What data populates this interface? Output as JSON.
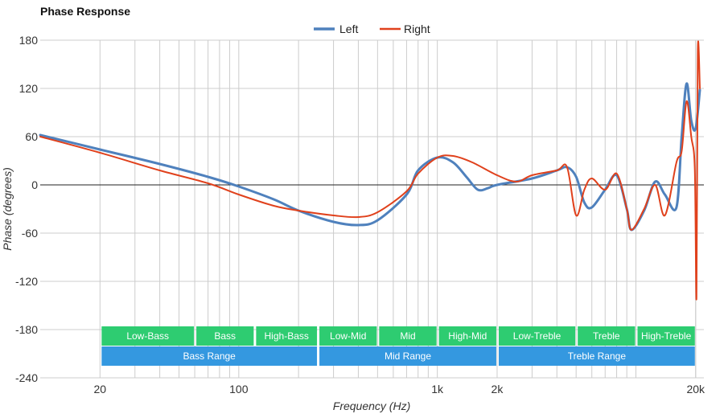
{
  "chart_data": {
    "type": "line",
    "title": "Phase Response",
    "xlabel": "Frequency (Hz)",
    "ylabel": "Phase (degrees)",
    "x_scale": "log",
    "xlim": [
      10,
      22000
    ],
    "ylim": [
      -240,
      180
    ],
    "x_ticks": [
      {
        "value": 20,
        "label": "20"
      },
      {
        "value": 100,
        "label": "100"
      },
      {
        "value": 1000,
        "label": "1k"
      },
      {
        "value": 2000,
        "label": "2k"
      },
      {
        "value": 20000,
        "label": "20k"
      }
    ],
    "y_ticks": [
      180,
      120,
      60,
      0,
      -60,
      -120,
      -180,
      -240
    ],
    "grid": true,
    "legend_position": "top-center",
    "series": [
      {
        "name": "Left",
        "color": "#4f81bd",
        "points": [
          [
            10,
            62
          ],
          [
            20,
            44
          ],
          [
            40,
            26
          ],
          [
            70,
            10
          ],
          [
            100,
            -2
          ],
          [
            150,
            -18
          ],
          [
            200,
            -32
          ],
          [
            300,
            -46
          ],
          [
            400,
            -50
          ],
          [
            500,
            -44
          ],
          [
            700,
            -12
          ],
          [
            800,
            18
          ],
          [
            1000,
            34
          ],
          [
            1200,
            28
          ],
          [
            1400,
            10
          ],
          [
            1600,
            -6
          ],
          [
            1800,
            -4
          ],
          [
            2000,
            0
          ],
          [
            3000,
            8
          ],
          [
            4000,
            18
          ],
          [
            4500,
            22
          ],
          [
            5000,
            10
          ],
          [
            5500,
            -22
          ],
          [
            6000,
            -28
          ],
          [
            7000,
            -6
          ],
          [
            8000,
            12
          ],
          [
            9000,
            -30
          ],
          [
            9500,
            -56
          ],
          [
            11000,
            -32
          ],
          [
            12500,
            4
          ],
          [
            14000,
            -12
          ],
          [
            16000,
            -28
          ],
          [
            17000,
            60
          ],
          [
            18000,
            126
          ],
          [
            19000,
            80
          ],
          [
            20000,
            70
          ],
          [
            21000,
            118
          ]
        ]
      },
      {
        "name": "Right",
        "color": "#e0411c",
        "points": [
          [
            10,
            60
          ],
          [
            20,
            40
          ],
          [
            40,
            18
          ],
          [
            70,
            2
          ],
          [
            100,
            -12
          ],
          [
            150,
            -26
          ],
          [
            200,
            -32
          ],
          [
            300,
            -38
          ],
          [
            400,
            -40
          ],
          [
            500,
            -34
          ],
          [
            700,
            -8
          ],
          [
            800,
            14
          ],
          [
            1000,
            34
          ],
          [
            1200,
            36
          ],
          [
            1500,
            28
          ],
          [
            2000,
            12
          ],
          [
            2500,
            4
          ],
          [
            3000,
            12
          ],
          [
            4000,
            18
          ],
          [
            4500,
            22
          ],
          [
            5000,
            -38
          ],
          [
            5500,
            -6
          ],
          [
            6000,
            8
          ],
          [
            7000,
            -6
          ],
          [
            8000,
            14
          ],
          [
            9000,
            -30
          ],
          [
            9500,
            -56
          ],
          [
            11000,
            -30
          ],
          [
            12500,
            0
          ],
          [
            14000,
            -38
          ],
          [
            16000,
            28
          ],
          [
            17000,
            42
          ],
          [
            18000,
            104
          ],
          [
            19000,
            60
          ],
          [
            19800,
            20
          ],
          [
            20200,
            -140
          ],
          [
            20500,
            166
          ],
          [
            21000,
            120
          ]
        ]
      }
    ],
    "bands": [
      {
        "label": "Low-Bass",
        "range": [
          20,
          60
        ],
        "row": 1,
        "color": "#2ecc71"
      },
      {
        "label": "Bass",
        "range": [
          60,
          120
        ],
        "row": 1,
        "color": "#2ecc71"
      },
      {
        "label": "High-Bass",
        "range": [
          120,
          250
        ],
        "row": 1,
        "color": "#2ecc71"
      },
      {
        "label": "Low-Mid",
        "range": [
          250,
          500
        ],
        "row": 1,
        "color": "#2ecc71"
      },
      {
        "label": "Mid",
        "range": [
          500,
          1000
        ],
        "row": 1,
        "color": "#2ecc71"
      },
      {
        "label": "High-Mid",
        "range": [
          1000,
          2000
        ],
        "row": 1,
        "color": "#2ecc71"
      },
      {
        "label": "Low-Treble",
        "range": [
          2000,
          5000
        ],
        "row": 1,
        "color": "#2ecc71"
      },
      {
        "label": "Treble",
        "range": [
          5000,
          10000
        ],
        "row": 1,
        "color": "#2ecc71"
      },
      {
        "label": "High-Treble",
        "range": [
          10000,
          20000
        ],
        "row": 1,
        "color": "#2ecc71"
      },
      {
        "label": "Bass Range",
        "range": [
          20,
          250
        ],
        "row": 2,
        "color": "#3498e0"
      },
      {
        "label": "Mid Range",
        "range": [
          250,
          2000
        ],
        "row": 2,
        "color": "#3498e0"
      },
      {
        "label": "Treble Range",
        "range": [
          2000,
          20000
        ],
        "row": 2,
        "color": "#3498e0"
      }
    ]
  }
}
